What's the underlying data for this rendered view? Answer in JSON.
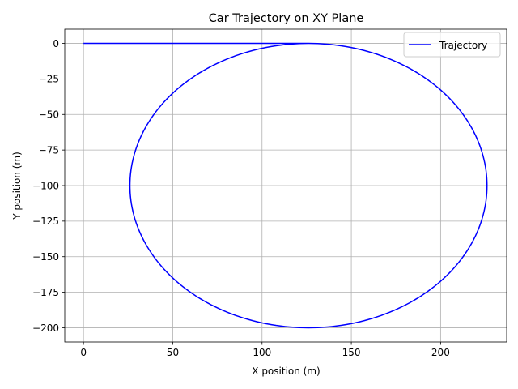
{
  "chart_data": {
    "type": "line",
    "title": "Car Trajectory on XY Plane",
    "xlabel": "X position (m)",
    "ylabel": "Y position (m)",
    "xlim": [
      -10.5,
      237
    ],
    "ylim": [
      -210,
      10
    ],
    "xticks": [
      0,
      50,
      100,
      150,
      200
    ],
    "yticks": [
      0,
      -25,
      -50,
      -75,
      -100,
      -125,
      -150,
      -175,
      -200
    ],
    "grid": true,
    "legend_position": "top-right",
    "series": [
      {
        "name": "Trajectory",
        "color": "#0000ff",
        "segments": [
          {
            "kind": "straight",
            "x": [
              0,
              126
            ],
            "y": [
              0,
              0
            ]
          },
          {
            "kind": "circle",
            "center": [
              126,
              -100
            ],
            "radius": 100
          }
        ]
      }
    ]
  }
}
